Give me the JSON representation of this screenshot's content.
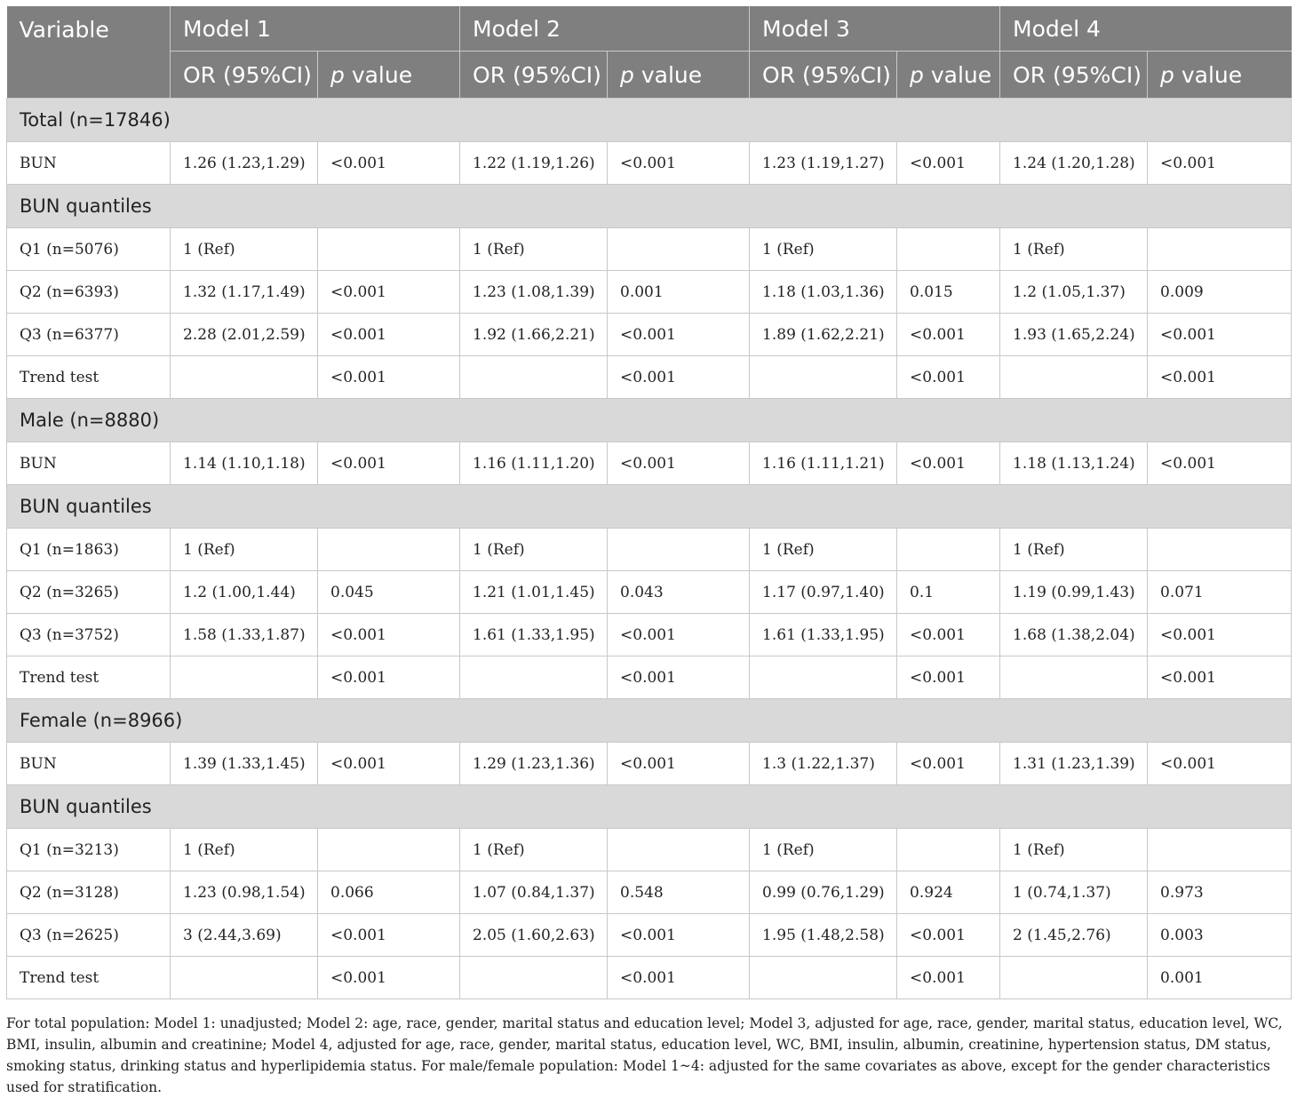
{
  "header": {
    "variable": "Variable",
    "models": [
      "Model 1",
      "Model 2",
      "Model 3",
      "Model 4"
    ],
    "or_label": "OR (95%CI)",
    "p_italic": "p",
    "p_rest": " value"
  },
  "rows": [
    {
      "type": "section",
      "label": "Total (n=17846)"
    },
    {
      "type": "data",
      "cells": [
        "BUN",
        "1.26 (1.23,1.29)",
        "<0.001",
        "1.22 (1.19,1.26)",
        "<0.001",
        "1.23 (1.19,1.27)",
        "<0.001",
        "1.24 (1.20,1.28)",
        "<0.001"
      ]
    },
    {
      "type": "section",
      "label": "BUN quantiles"
    },
    {
      "type": "data",
      "cells": [
        "Q1 (n=5076)",
        "1 (Ref)",
        "",
        "1 (Ref)",
        "",
        "1 (Ref)",
        "",
        "1 (Ref)",
        ""
      ]
    },
    {
      "type": "data",
      "cells": [
        "Q2 (n=6393)",
        "1.32 (1.17,1.49)",
        "<0.001",
        "1.23 (1.08,1.39)",
        "0.001",
        "1.18 (1.03,1.36)",
        "0.015",
        "1.2 (1.05,1.37)",
        "0.009"
      ]
    },
    {
      "type": "data",
      "cells": [
        "Q3 (n=6377)",
        "2.28 (2.01,2.59)",
        "<0.001",
        "1.92 (1.66,2.21)",
        "<0.001",
        "1.89 (1.62,2.21)",
        "<0.001",
        "1.93 (1.65,2.24)",
        "<0.001"
      ]
    },
    {
      "type": "data",
      "cells": [
        "Trend test",
        "",
        "<0.001",
        "",
        "<0.001",
        "",
        "<0.001",
        "",
        "<0.001"
      ]
    },
    {
      "type": "section",
      "label": "Male (n=8880)"
    },
    {
      "type": "data",
      "cells": [
        "BUN",
        "1.14 (1.10,1.18)",
        "<0.001",
        "1.16 (1.11,1.20)",
        "<0.001",
        "1.16 (1.11,1.21)",
        "<0.001",
        "1.18 (1.13,1.24)",
        "<0.001"
      ]
    },
    {
      "type": "section",
      "label": "BUN quantiles"
    },
    {
      "type": "data",
      "cells": [
        "Q1 (n=1863)",
        "1 (Ref)",
        "",
        "1 (Ref)",
        "",
        "1 (Ref)",
        "",
        "1 (Ref)",
        ""
      ]
    },
    {
      "type": "data",
      "cells": [
        "Q2 (n=3265)",
        "1.2 (1.00,1.44)",
        "0.045",
        "1.21 (1.01,1.45)",
        "0.043",
        "1.17 (0.97,1.40)",
        "0.1",
        "1.19 (0.99,1.43)",
        "0.071"
      ]
    },
    {
      "type": "data",
      "cells": [
        "Q3 (n=3752)",
        "1.58 (1.33,1.87)",
        "<0.001",
        "1.61 (1.33,1.95)",
        "<0.001",
        "1.61 (1.33,1.95)",
        "<0.001",
        "1.68 (1.38,2.04)",
        "<0.001"
      ]
    },
    {
      "type": "data",
      "cells": [
        "Trend test",
        "",
        "<0.001",
        "",
        "<0.001",
        "",
        "<0.001",
        "",
        "<0.001"
      ]
    },
    {
      "type": "section",
      "label": "Female (n=8966)"
    },
    {
      "type": "data",
      "cells": [
        "BUN",
        "1.39 (1.33,1.45)",
        "<0.001",
        "1.29 (1.23,1.36)",
        "<0.001",
        "1.3 (1.22,1.37)",
        "<0.001",
        "1.31 (1.23,1.39)",
        "<0.001"
      ]
    },
    {
      "type": "section",
      "label": "BUN quantiles"
    },
    {
      "type": "data",
      "cells": [
        "Q1 (n=3213)",
        "1 (Ref)",
        "",
        "1 (Ref)",
        "",
        "1 (Ref)",
        "",
        "1 (Ref)",
        ""
      ]
    },
    {
      "type": "data",
      "cells": [
        "Q2 (n=3128)",
        "1.23 (0.98,1.54)",
        "0.066",
        "1.07 (0.84,1.37)",
        "0.548",
        "0.99 (0.76,1.29)",
        "0.924",
        "1 (0.74,1.37)",
        "0.973"
      ]
    },
    {
      "type": "data",
      "cells": [
        "Q3 (n=2625)",
        "3 (2.44,3.69)",
        "<0.001",
        "2.05 (1.60,2.63)",
        "<0.001",
        "1.95 (1.48,2.58)",
        "<0.001",
        "2 (1.45,2.76)",
        "0.003"
      ]
    },
    {
      "type": "data",
      "cells": [
        "Trend test",
        "",
        "<0.001",
        "",
        "<0.001",
        "",
        "<0.001",
        "",
        "0.001"
      ]
    }
  ],
  "footnote": "For total population: Model 1: unadjusted; Model 2: age, race, gender, marital status and education level; Model 3, adjusted for age, race, gender, marital status, education level, WC, BMI, insulin, albumin and creatinine; Model 4, adjusted for age, race, gender, marital status, education level, WC, BMI, insulin, albumin, creatinine, hypertension status, DM status, smoking status, drinking status and hyperlipidemia status. For male/female population: Model 1~4: adjusted for the same covariates as above, except for the gender characteristics used for stratification."
}
